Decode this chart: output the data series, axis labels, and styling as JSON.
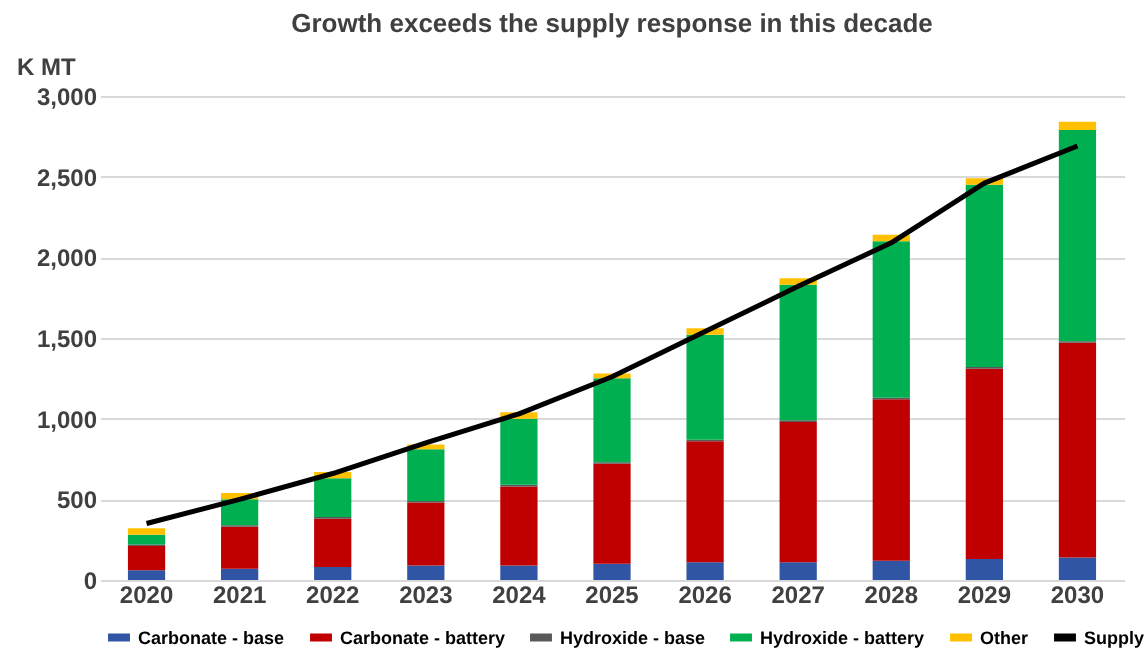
{
  "chart_data": {
    "type": "bar",
    "title": "Growth exceeds the supply response in this decade",
    "ylabel": "K MT",
    "categories": [
      "2020",
      "2021",
      "2022",
      "2023",
      "2024",
      "2025",
      "2026",
      "2027",
      "2028",
      "2029",
      "2030"
    ],
    "stacked": true,
    "ylim": [
      0,
      3000
    ],
    "yticks": [
      0,
      {
        "value": 500,
        "label": "500"
      },
      {
        "value": 1000,
        "label": "1,000"
      },
      {
        "value": 1500,
        "label": "1,500"
      },
      {
        "value": 2000,
        "label": "2,000"
      },
      {
        "value": 2500,
        "label": "2,500"
      },
      {
        "value": 3000,
        "label": "3,000"
      }
    ],
    "grid": "y",
    "legend": "bottom",
    "line_style": "solid",
    "series": [
      {
        "name": "Carbonate - base",
        "color": "#2f55a4",
        "values": [
          60,
          70,
          80,
          90,
          90,
          100,
          110,
          110,
          120,
          130,
          140
        ]
      },
      {
        "name": "Carbonate - battery",
        "color": "#c00000",
        "values": [
          150,
          260,
          300,
          390,
          490,
          620,
          750,
          870,
          1000,
          1180,
          1330
        ]
      },
      {
        "name": "Hydroxide - base",
        "color": "#595959",
        "values": [
          10,
          10,
          10,
          10,
          10,
          10,
          10,
          10,
          10,
          10,
          10
        ]
      },
      {
        "name": "Hydroxide - battery",
        "color": "#00b050",
        "values": [
          60,
          160,
          240,
          320,
          410,
          520,
          650,
          840,
          970,
          1130,
          1310
        ]
      },
      {
        "name": "Other",
        "color": "#ffc000",
        "values": [
          40,
          40,
          40,
          30,
          40,
          30,
          40,
          40,
          40,
          40,
          50
        ]
      },
      {
        "name": "Supply",
        "type": "line",
        "color": "#000000",
        "values": [
          350,
          500,
          660,
          850,
          1030,
          1260,
          1540,
          1820,
          2090,
          2460,
          2690
        ]
      }
    ]
  }
}
